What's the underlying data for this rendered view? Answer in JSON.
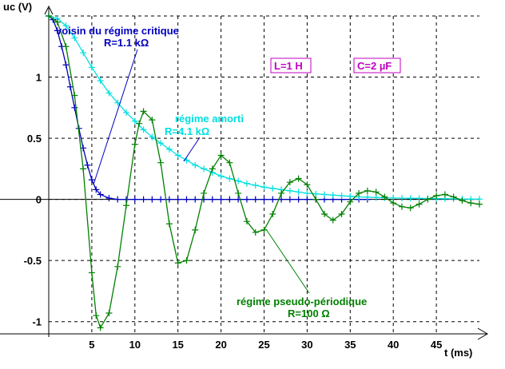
{
  "chart_data": {
    "type": "line",
    "xlabel": "t (ms)",
    "ylabel": "uc (V)",
    "xlim": [
      0,
      50
    ],
    "ylim": [
      -1.1,
      1.5
    ],
    "grid": true,
    "x_ticks": [
      5,
      10,
      15,
      20,
      25,
      30,
      35,
      40,
      45
    ],
    "y_ticks": [
      -1,
      -0.5,
      0,
      0.5,
      1
    ],
    "x_tick_labels": [
      "5",
      "10",
      "15",
      "20",
      "25",
      "30",
      "35",
      "40",
      "45"
    ],
    "y_tick_labels": [
      "-1",
      "-0.5",
      "0",
      "0.5",
      "1"
    ],
    "colors": {
      "critique": "#0000c0",
      "amorti": "#00e0e0",
      "pseudo": "#008000",
      "params": "#c000c0"
    },
    "series": [
      {
        "key": "critique",
        "name": "voisin du régime critique",
        "sublabel": "R=1.1 kΩ",
        "x": [
          0,
          0.5,
          1,
          1.5,
          2,
          2.5,
          3,
          3.5,
          4,
          4.5,
          5,
          5.5,
          6,
          7,
          8,
          9,
          10,
          11,
          12,
          13,
          14,
          15,
          16,
          17,
          18,
          19,
          20,
          21,
          22,
          23,
          24,
          25,
          26,
          27,
          28,
          29,
          30,
          31,
          32,
          33,
          34,
          35,
          36,
          37
        ],
        "y": [
          1.5,
          1.47,
          1.38,
          1.25,
          1.1,
          0.92,
          0.75,
          0.58,
          0.42,
          0.28,
          0.16,
          0.08,
          0.04,
          0.01,
          0,
          0,
          0,
          0,
          0,
          0,
          0,
          0,
          0,
          0,
          0,
          0,
          0,
          0,
          0,
          0,
          0,
          0,
          0,
          0,
          0,
          0,
          0,
          0,
          0,
          0,
          0,
          0,
          0,
          0
        ]
      },
      {
        "key": "amorti",
        "name": "régime amorti",
        "sublabel": "R=4.1 kΩ",
        "x": [
          0,
          1,
          2,
          3,
          4,
          5,
          6,
          7,
          8,
          9,
          10,
          11,
          12,
          13,
          14,
          15,
          16,
          17,
          18,
          19,
          20,
          21,
          22,
          23,
          24,
          25,
          26,
          27,
          28,
          29,
          30,
          31,
          32,
          33,
          34,
          35,
          36,
          37,
          38,
          39,
          40,
          41,
          42,
          43,
          44,
          45,
          46,
          47,
          48,
          49,
          50
        ],
        "y": [
          1.5,
          1.48,
          1.42,
          1.32,
          1.2,
          1.08,
          0.97,
          0.87,
          0.79,
          0.71,
          0.64,
          0.57,
          0.51,
          0.46,
          0.41,
          0.36,
          0.32,
          0.28,
          0.25,
          0.22,
          0.19,
          0.17,
          0.15,
          0.13,
          0.115,
          0.1,
          0.09,
          0.08,
          0.07,
          0.06,
          0.05,
          0.045,
          0.04,
          0.035,
          0.03,
          0.025,
          0.02,
          0.018,
          0.015,
          0.013,
          0.011,
          0.01,
          0.009,
          0.008,
          0.007,
          0.006,
          0.005,
          0.004,
          0.003,
          0.002,
          0.002
        ]
      },
      {
        "key": "pseudo",
        "name": "régime pseudo-périodique",
        "sublabel": "R=100 Ω",
        "x": [
          0,
          1,
          2,
          3,
          4,
          5,
          5.5,
          6,
          7,
          8,
          9,
          10,
          10.5,
          11,
          12,
          13,
          14,
          15,
          16,
          17,
          18,
          19,
          20,
          21,
          22,
          23,
          24,
          25,
          26,
          27,
          28,
          29,
          30,
          31,
          32,
          33,
          34,
          35,
          36,
          37,
          38,
          39,
          40,
          41,
          42,
          43,
          44,
          45,
          46,
          47,
          48,
          49,
          50
        ],
        "y": [
          1.5,
          1.45,
          1.25,
          0.85,
          0.25,
          -0.6,
          -0.95,
          -1.05,
          -0.93,
          -0.55,
          -0.05,
          0.45,
          0.62,
          0.72,
          0.65,
          0.3,
          -0.2,
          -0.52,
          -0.5,
          -0.25,
          0.05,
          0.25,
          0.36,
          0.3,
          0.05,
          -0.18,
          -0.27,
          -0.25,
          -0.12,
          0.05,
          0.14,
          0.17,
          0.12,
          0.0,
          -0.12,
          -0.17,
          -0.12,
          -0.02,
          0.05,
          0.07,
          0.06,
          0.02,
          -0.03,
          -0.06,
          -0.07,
          -0.04,
          0.0,
          0.03,
          0.04,
          0.02,
          -0.01,
          -0.03,
          -0.04
        ]
      }
    ],
    "annotations": {
      "critique_line1": "voisin du régime critique",
      "critique_line2": "R=1.1 kΩ",
      "amorti_line1": "régime amorti",
      "amorti_line2": "R=4.1 kΩ",
      "pseudo_line1": "régime pseudo-périodique",
      "pseudo_line2": "R=100 Ω",
      "inductance": "L=1 H",
      "capacitance": "C=2 µF"
    }
  }
}
